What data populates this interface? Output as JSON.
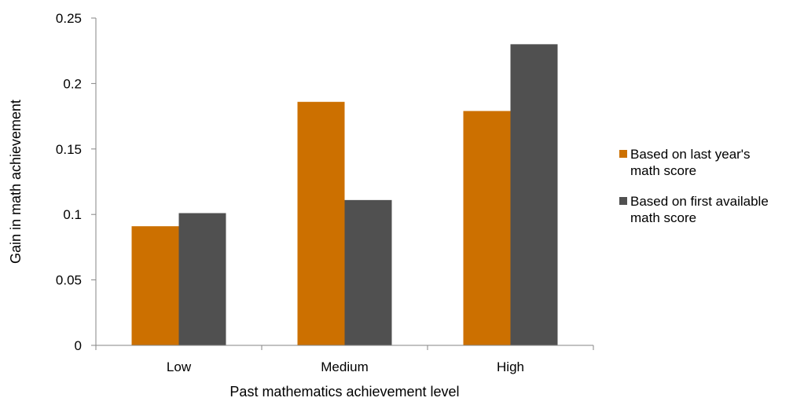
{
  "chart_data": {
    "type": "bar",
    "title": "",
    "xlabel": "Past mathematics achievement level",
    "ylabel": "Gain in math achievement",
    "categories": [
      "Low",
      "Medium",
      "High"
    ],
    "ylim": [
      0,
      0.25
    ],
    "yticks": [
      0,
      0.05,
      0.1,
      0.15,
      0.2,
      0.25
    ],
    "ytick_labels": [
      "0",
      "0.05",
      "0.1",
      "0.15",
      "0.2",
      "0.25"
    ],
    "grid": false,
    "legend_position": "right",
    "series": [
      {
        "name": "Based on last year's math score",
        "color": "#CC7000",
        "values": [
          0.091,
          0.186,
          0.179
        ]
      },
      {
        "name": "Based on first available math score",
        "color": "#505050",
        "values": [
          0.101,
          0.111,
          0.23
        ]
      }
    ]
  },
  "legend": {
    "items": [
      {
        "label_line1": "Based on last year's",
        "label_line2": "math score",
        "color": "#CC7000"
      },
      {
        "label_line1": "Based on first available",
        "label_line2": "math score",
        "color": "#505050"
      }
    ]
  }
}
